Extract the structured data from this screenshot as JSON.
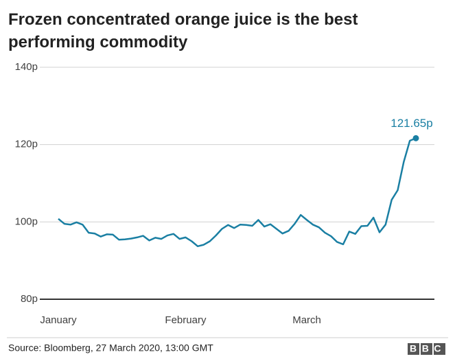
{
  "chart_data": {
    "type": "line",
    "title": "Frozen concentrated orange juice is the best performing commodity",
    "source": "Source: Bloomberg, 27 March 2020, 13:00 GMT",
    "logo": "BBC",
    "categories": [
      "January",
      null,
      null,
      null,
      null,
      null,
      null,
      null,
      null,
      null,
      null,
      null,
      null,
      null,
      null,
      null,
      null,
      null,
      null,
      null,
      null,
      "February",
      null,
      null,
      null,
      null,
      null,
      null,
      null,
      null,
      null,
      null,
      null,
      null,
      null,
      null,
      null,
      null,
      null,
      null,
      null,
      "March",
      null,
      null,
      null,
      null,
      null,
      null,
      null,
      null,
      null,
      null,
      null,
      null,
      null,
      null,
      null,
      null,
      null,
      null
    ],
    "series": [
      {
        "color": "#1a7fa3",
        "values": [
          100.8,
          99.5,
          99.3,
          99.9,
          99.3,
          97.2,
          97.0,
          96.2,
          96.8,
          96.7,
          95.4,
          95.5,
          95.7,
          96.0,
          96.4,
          95.2,
          95.9,
          95.6,
          96.5,
          96.9,
          95.6,
          96.0,
          95.0,
          93.7,
          94.1,
          95.0,
          96.5,
          98.2,
          99.2,
          98.4,
          99.3,
          99.2,
          99.0,
          100.5,
          98.8,
          99.4,
          98.2,
          97.0,
          97.7,
          99.5,
          101.8,
          100.5,
          99.3,
          98.6,
          97.2,
          96.3,
          94.8,
          94.2,
          97.5,
          96.9,
          98.9,
          99.0,
          101.1,
          97.3,
          99.3,
          105.7,
          108.2,
          115.5,
          121.0,
          121.65
        ],
        "value_labels": [
          null,
          null,
          null,
          null,
          null,
          null,
          null,
          null,
          null,
          null,
          null,
          null,
          null,
          null,
          null,
          null,
          null,
          null,
          null,
          null,
          null,
          null,
          null,
          null,
          null,
          null,
          null,
          null,
          null,
          null,
          null,
          null,
          null,
          null,
          null,
          null,
          null,
          null,
          null,
          null,
          null,
          null,
          null,
          null,
          null,
          null,
          null,
          null,
          null,
          null,
          null,
          null,
          null,
          null,
          null,
          null,
          null,
          null,
          null,
          "121.65p"
        ]
      }
    ],
    "ylim": [
      80,
      140
    ],
    "yticks": [
      {
        "value": 80,
        "label": "80p"
      },
      {
        "value": 100,
        "label": "100p"
      },
      {
        "value": 120,
        "label": "120p"
      },
      {
        "value": 140,
        "label": "140p"
      }
    ],
    "grid": true
  }
}
